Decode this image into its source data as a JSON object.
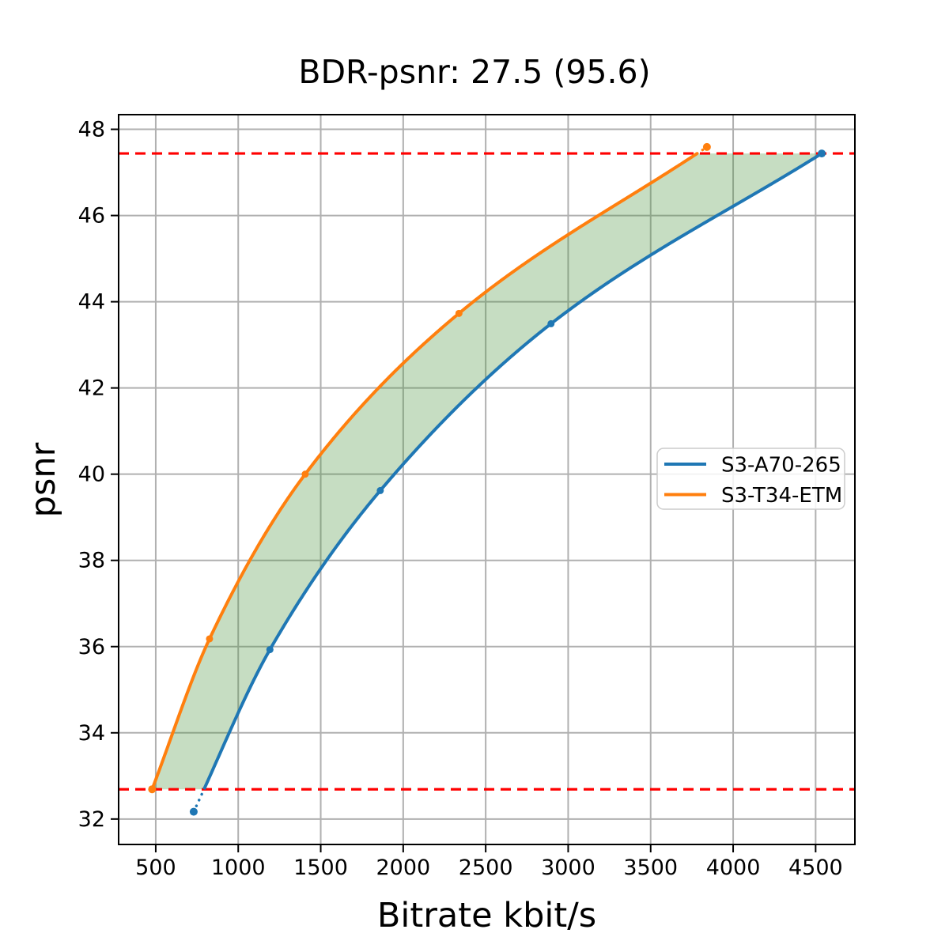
{
  "chart_data": {
    "type": "line",
    "title": "BDR-psnr: 27.5 (95.6)",
    "xlabel": "Bitrate kbit/s",
    "ylabel": "psnr",
    "xlim": [
      275,
      4738
    ],
    "ylim": [
      31.41,
      48.34
    ],
    "x_ticks": [
      500,
      1000,
      1500,
      2000,
      2500,
      3000,
      3500,
      4000,
      4500
    ],
    "y_ticks": [
      32,
      34,
      36,
      38,
      40,
      42,
      44,
      46,
      48
    ],
    "grid": true,
    "grid_color": "#b0b0b0",
    "background": "#ffffff",
    "series": [
      {
        "name": "S3-A70-265",
        "color": "#1f77b4",
        "marker": "circle",
        "points": [
          [
            730,
            32.17
          ],
          [
            1192,
            35.93
          ],
          [
            1861,
            39.62
          ],
          [
            2896,
            43.49
          ],
          [
            4537,
            47.44
          ]
        ]
      },
      {
        "name": "S3-T34-ETM",
        "color": "#ff7f0e",
        "marker": "circle",
        "points": [
          [
            478,
            32.69
          ],
          [
            826,
            36.18
          ],
          [
            1406,
            40.0
          ],
          [
            2338,
            43.73
          ],
          [
            3841,
            47.59
          ]
        ]
      }
    ],
    "hlines": {
      "values": [
        32.69,
        47.44
      ],
      "color": "#ff0000",
      "style": "dashed",
      "note": "overlap interval bounds: min psnr of S3-T34-ETM and max psnr of S3-A70-265"
    },
    "shaded_region": {
      "between": [
        "S3-T34-ETM",
        "S3-A70-265"
      ],
      "y_range": [
        32.69,
        47.44
      ],
      "fill_color": "#418e34",
      "fill_opacity": 0.3
    },
    "out_of_interval_style": "dotted",
    "legend": {
      "position": "center-right",
      "entries": [
        "S3-A70-265",
        "S3-T34-ETM"
      ]
    }
  }
}
